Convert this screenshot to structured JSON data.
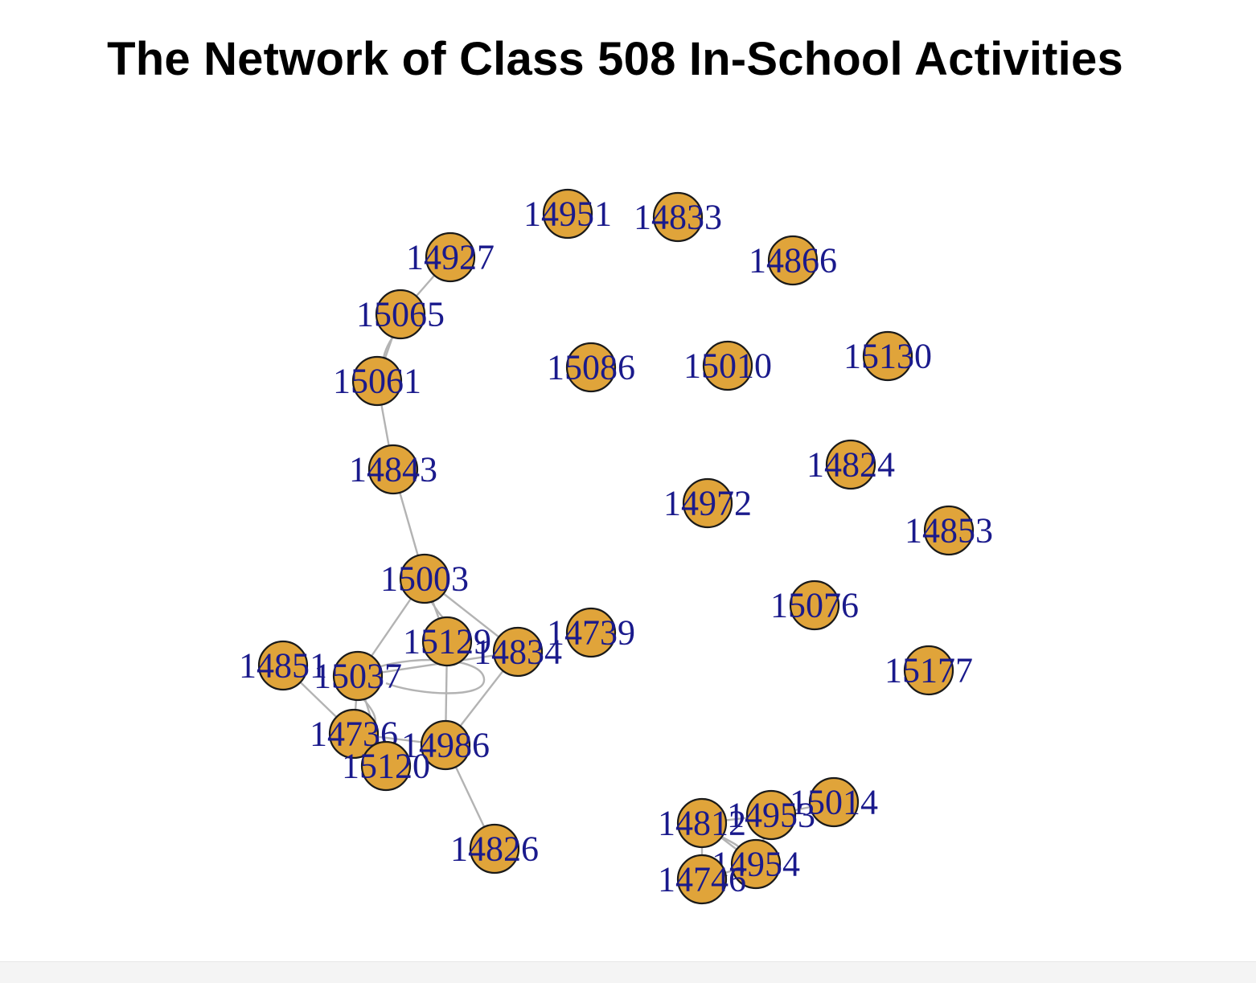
{
  "title": "The Network of Class 508 In-School Activities",
  "colors": {
    "node_fill": "#e0a43a",
    "node_stroke": "#1a1a1a",
    "label": "#1a1a8c",
    "edge": "#b3b3b3"
  },
  "nodes": [
    {
      "id": "14951",
      "label": "14951"
    },
    {
      "id": "14833",
      "label": "14833"
    },
    {
      "id": "14927",
      "label": "14927"
    },
    {
      "id": "14866",
      "label": "14866"
    },
    {
      "id": "15065",
      "label": "15065"
    },
    {
      "id": "15061",
      "label": "15061"
    },
    {
      "id": "15086",
      "label": "15086"
    },
    {
      "id": "15010",
      "label": "15010"
    },
    {
      "id": "15130",
      "label": "15130"
    },
    {
      "id": "14843",
      "label": "14843"
    },
    {
      "id": "14824",
      "label": "14824"
    },
    {
      "id": "14972",
      "label": "14972"
    },
    {
      "id": "14853",
      "label": "14853"
    },
    {
      "id": "15003",
      "label": "15003"
    },
    {
      "id": "15076",
      "label": "15076"
    },
    {
      "id": "14739",
      "label": "14739"
    },
    {
      "id": "15129",
      "label": "15129"
    },
    {
      "id": "14834",
      "label": "14834"
    },
    {
      "id": "14851",
      "label": "14851"
    },
    {
      "id": "15037",
      "label": "15037"
    },
    {
      "id": "15177",
      "label": "15177"
    },
    {
      "id": "14736",
      "label": "14736"
    },
    {
      "id": "14986",
      "label": "14986"
    },
    {
      "id": "15120",
      "label": "15120"
    },
    {
      "id": "15014",
      "label": "15014"
    },
    {
      "id": "14812",
      "label": "14812"
    },
    {
      "id": "14953",
      "label": "14953"
    },
    {
      "id": "14826",
      "label": "14826"
    },
    {
      "id": "14954",
      "label": "14954"
    },
    {
      "id": "14746",
      "label": "14746"
    }
  ],
  "edges": [
    [
      "14927",
      "15065"
    ],
    [
      "15065",
      "15061"
    ],
    [
      "15061",
      "14843"
    ],
    [
      "14843",
      "15003"
    ],
    [
      "15003",
      "14834"
    ],
    [
      "15003",
      "15037"
    ],
    [
      "15003",
      "15129"
    ],
    [
      "15129",
      "14986"
    ],
    [
      "14834",
      "14986"
    ],
    [
      "14851",
      "14736"
    ],
    [
      "15037",
      "14736"
    ],
    [
      "15037",
      "15120"
    ],
    [
      "14736",
      "14986"
    ],
    [
      "14986",
      "14826"
    ],
    [
      "15037",
      "14834"
    ],
    [
      "14812",
      "14746"
    ],
    [
      "14812",
      "14954"
    ],
    [
      "14953",
      "15014"
    ],
    [
      "14953",
      "14954"
    ],
    [
      "14746",
      "14954"
    ],
    [
      "14812",
      "14953"
    ]
  ]
}
